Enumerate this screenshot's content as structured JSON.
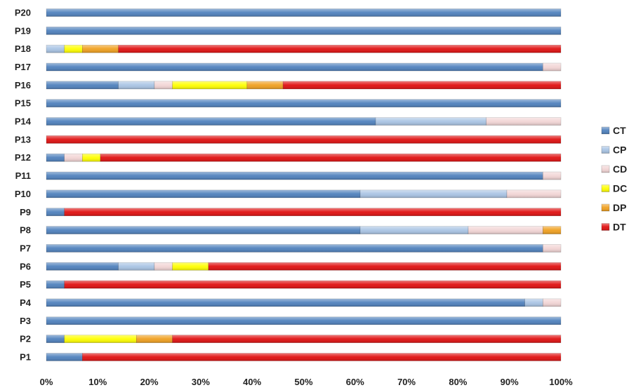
{
  "chart_data": {
    "type": "bar",
    "orientation": "horizontal",
    "stacked": "100%",
    "categories": [
      "P1",
      "P2",
      "P3",
      "P4",
      "P5",
      "P6",
      "P7",
      "P8",
      "P9",
      "P10",
      "P11",
      "P12",
      "P13",
      "P14",
      "P15",
      "P16",
      "P17",
      "P18",
      "P19",
      "P20"
    ],
    "series": [
      {
        "name": "CT",
        "color": "#4f81bd",
        "values": [
          7,
          3.5,
          100,
          93,
          3.5,
          14,
          96.5,
          61,
          3.5,
          61,
          96.5,
          3.5,
          0,
          64,
          100,
          14,
          96.5,
          0,
          100,
          100
        ]
      },
      {
        "name": "CP",
        "color": "#a9c4e4",
        "values": [
          0,
          0,
          0,
          3.5,
          0,
          7,
          0,
          21,
          0,
          28.5,
          0,
          0,
          0,
          21.5,
          0,
          7,
          0,
          3.5,
          0,
          0
        ]
      },
      {
        "name": "CD",
        "color": "#f2d5d5",
        "values": [
          0,
          0,
          0,
          3.5,
          0,
          3.5,
          3.5,
          14.5,
          0,
          10.5,
          3.5,
          3.5,
          0,
          14.5,
          0,
          3.5,
          3.5,
          0,
          0,
          0
        ]
      },
      {
        "name": "DC",
        "color": "#ffff00",
        "values": [
          0,
          14,
          0,
          0,
          0,
          7,
          0,
          0,
          0,
          0,
          0,
          3.5,
          0,
          0,
          0,
          14.5,
          0,
          3.5,
          0,
          0
        ]
      },
      {
        "name": "DP",
        "color": "#f0a020",
        "values": [
          0,
          7,
          0,
          0,
          0,
          0,
          0,
          3.5,
          0,
          0,
          0,
          0,
          0,
          0,
          0,
          7,
          0,
          7,
          0,
          0
        ]
      },
      {
        "name": "DT",
        "color": "#e01010",
        "values": [
          93,
          75.5,
          0,
          0,
          96.5,
          68.5,
          0,
          0,
          96.5,
          0,
          0,
          89.5,
          100,
          0,
          0,
          54,
          0,
          86,
          0,
          0
        ]
      }
    ],
    "xlim": [
      0,
      100
    ],
    "xticks": [
      "0%",
      "10%",
      "20%",
      "30%",
      "40%",
      "50%",
      "60%",
      "70%",
      "80%",
      "90%",
      "100%"
    ],
    "legend_position": "right",
    "grid": false,
    "title": "",
    "xlabel": "",
    "ylabel": ""
  }
}
